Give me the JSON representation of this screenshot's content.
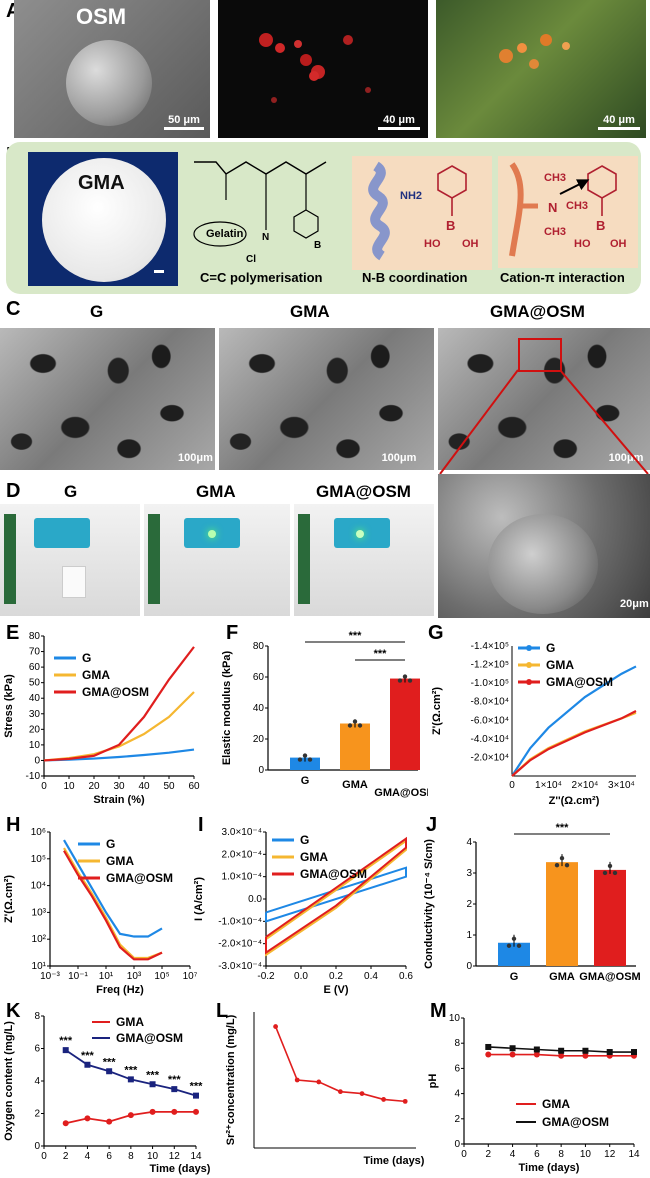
{
  "panels": {
    "A": "A",
    "B": "B",
    "C": "C",
    "D": "D",
    "E": "E",
    "F": "F",
    "G": "G",
    "H": "H",
    "I": "I",
    "J": "J",
    "K": "K",
    "L": "L",
    "M": "M"
  },
  "panelA": {
    "title": "OSM",
    "scale1": "50 μm",
    "scale2": "40 μm",
    "scale3": "40 μm"
  },
  "panelB": {
    "gma": "GMA",
    "gelatin": "Gelatin",
    "cap1": "C=C polymerisation",
    "cap2": "N-B coordination",
    "cap3": "Cation-π interaction",
    "nh2": "NH2",
    "ho": "HO",
    "oh": "OH",
    "b": "B",
    "n": "N",
    "ch3": "CH3",
    "cl": "Cl"
  },
  "panelC": {
    "t1": "G",
    "t2": "GMA",
    "t3": "GMA@OSM",
    "s1": "100μm",
    "s2": "100μm",
    "s3": "100μm",
    "s4": "20μm"
  },
  "panelD": {
    "t1": "G",
    "t2": "GMA",
    "t3": "GMA@OSM"
  },
  "colors": {
    "G": "#1e88e5",
    "GMA": "#f5b731",
    "GMA@OSM": "#e01e1e",
    "GMA_bar": "#f7941d",
    "OSM_line": "#1a237e"
  },
  "chart_data": [
    {
      "panel": "E",
      "type": "line",
      "ylabel": "Stress (kPa)",
      "xlabel": "Strain (%)",
      "xticks": [
        "0",
        "10",
        "20",
        "30",
        "40",
        "50",
        "60"
      ],
      "yticks": [
        "-10",
        "0",
        "10",
        "20",
        "30",
        "40",
        "50",
        "60",
        "70",
        "80"
      ],
      "ylim": [
        -10,
        80
      ],
      "xlim": [
        0,
        60
      ],
      "series": [
        {
          "name": "G",
          "x": [
            0,
            10,
            20,
            30,
            40,
            50,
            60
          ],
          "y": [
            0,
            0.5,
            1.2,
            2.2,
            3.5,
            5,
            7
          ]
        },
        {
          "name": "GMA",
          "x": [
            0,
            10,
            20,
            30,
            40,
            50,
            60
          ],
          "y": [
            0,
            1.5,
            4,
            9,
            17,
            28,
            44
          ]
        },
        {
          "name": "GMA@OSM",
          "x": [
            0,
            10,
            20,
            30,
            40,
            50,
            60
          ],
          "y": [
            0,
            1,
            3,
            10,
            28,
            52,
            73
          ]
        }
      ]
    },
    {
      "panel": "F",
      "type": "bar",
      "ylabel": "Elastic modulus (kPa)",
      "categories": [
        "G",
        "GMA",
        "GMA@OSM"
      ],
      "values": [
        8,
        30,
        59
      ],
      "ylim": [
        0,
        80
      ],
      "yticks": [
        "0",
        "20",
        "40",
        "60",
        "80"
      ],
      "sig": [
        "***",
        "***"
      ]
    },
    {
      "panel": "G",
      "type": "line",
      "ylabel": "Z'(Ω.cm²)",
      "xlabel": "Z''(Ω.cm²)",
      "yticks": [
        "-2.0×10⁴",
        "-4.0×10⁴",
        "-6.0×10⁴",
        "-8.0×10⁴",
        "-1.0×10⁵",
        "-1.2×10⁵",
        "-1.4×10⁵"
      ],
      "xticks": [
        "0",
        "1×10⁴",
        "2×10⁴",
        "3×10⁴"
      ],
      "series": [
        {
          "name": "G",
          "x": [
            0,
            5000,
            10000,
            20000,
            30000,
            34000
          ],
          "y": [
            0,
            30000,
            52000,
            85000,
            110000,
            118000
          ]
        },
        {
          "name": "GMA",
          "x": [
            0,
            5000,
            10000,
            20000,
            30000,
            34000
          ],
          "y": [
            0,
            18000,
            30000,
            48000,
            62000,
            68000
          ]
        },
        {
          "name": "GMA@OSM",
          "x": [
            0,
            5000,
            10000,
            20000,
            30000,
            34000
          ],
          "y": [
            0,
            17000,
            29000,
            47000,
            62000,
            70000
          ]
        }
      ]
    },
    {
      "panel": "H",
      "type": "line",
      "ylabel": "Z'(Ω.cm²)",
      "xlabel": "Freq (Hz)",
      "xticks": [
        "10⁻³",
        "10⁻¹",
        "10¹",
        "10³",
        "10⁵",
        "10⁷"
      ],
      "yticks": [
        "10¹",
        "10²",
        "10³",
        "10⁴",
        "10⁵",
        "10⁶"
      ],
      "series": [
        {
          "name": "G",
          "x": [
            -2,
            -1,
            0,
            1,
            2,
            3,
            4,
            5
          ],
          "y": [
            5.7,
            4.8,
            3.9,
            3.0,
            2.2,
            2.1,
            2.1,
            2.4
          ]
        },
        {
          "name": "GMA",
          "x": [
            -2,
            -1,
            0,
            1,
            2,
            3,
            4,
            5
          ],
          "y": [
            5.4,
            4.5,
            3.7,
            2.8,
            1.8,
            1.3,
            1.3,
            1.5
          ]
        },
        {
          "name": "GMA@OSM",
          "x": [
            -2,
            -1,
            0,
            1,
            2,
            3,
            4,
            5
          ],
          "y": [
            5.3,
            4.4,
            3.6,
            2.7,
            1.7,
            1.25,
            1.25,
            1.5
          ]
        }
      ]
    },
    {
      "panel": "I",
      "type": "line",
      "ylabel": "I (A/cm²)",
      "xlabel": "E (V)",
      "xticks": [
        "-0.2",
        "0.0",
        "0.2",
        "0.4",
        "0.6"
      ],
      "yticks": [
        "-3.0×10⁻⁴",
        "-2.0×10⁻⁴",
        "-1.0×10⁻⁴",
        "0.0",
        "1.0×10⁻⁴",
        "2.0×10⁻⁴",
        "3.0×10⁻⁴"
      ],
      "series": [
        {
          "name": "G"
        },
        {
          "name": "GMA"
        },
        {
          "name": "GMA@OSM"
        }
      ]
    },
    {
      "panel": "J",
      "type": "bar",
      "ylabel": "Conductivity (10⁻⁴ S/cm)",
      "categories": [
        "G",
        "GMA",
        "GMA@OSM"
      ],
      "values": [
        0.75,
        3.35,
        3.1
      ],
      "ylim": [
        0,
        4
      ],
      "yticks": [
        "0",
        "1",
        "2",
        "3",
        "4"
      ],
      "sig": [
        "***"
      ]
    },
    {
      "panel": "K",
      "type": "line",
      "ylabel": "Oxygen content (mg/L)",
      "xlabel": "Time (days)",
      "xticks": [
        "0",
        "2",
        "4",
        "6",
        "8",
        "10",
        "12",
        "14"
      ],
      "yticks": [
        "0",
        "2",
        "4",
        "6",
        "8"
      ],
      "series": [
        {
          "name": "GMA",
          "x": [
            2,
            4,
            6,
            8,
            10,
            12,
            14
          ],
          "y": [
            1.4,
            1.7,
            1.5,
            1.9,
            2.1,
            2.1,
            2.1
          ]
        },
        {
          "name": "GMA@OSM",
          "x": [
            2,
            4,
            6,
            8,
            10,
            12,
            14
          ],
          "y": [
            5.9,
            5.0,
            4.6,
            4.1,
            3.8,
            3.5,
            3.1
          ]
        }
      ],
      "sig": "***"
    },
    {
      "panel": "L",
      "type": "line",
      "ylabel": "Sr²⁺concentration (mg/L)",
      "xlabel": "Time (days)",
      "series": [
        {
          "name": "",
          "x": [
            2,
            4,
            6,
            8,
            10,
            12,
            14
          ],
          "y": [
            12.5,
            7.0,
            6.8,
            5.8,
            5.6,
            5.0,
            4.8
          ]
        }
      ]
    },
    {
      "panel": "M",
      "type": "line",
      "ylabel": "pH",
      "xlabel": "Time (days)",
      "xticks": [
        "0",
        "2",
        "4",
        "6",
        "8",
        "10",
        "12",
        "14"
      ],
      "yticks": [
        "0",
        "2",
        "4",
        "6",
        "8",
        "10"
      ],
      "series": [
        {
          "name": "GMA",
          "x": [
            2,
            4,
            6,
            8,
            10,
            12,
            14
          ],
          "y": [
            7.1,
            7.1,
            7.1,
            7.0,
            7.0,
            7.0,
            7.0
          ]
        },
        {
          "name": "GMA@OSM",
          "x": [
            2,
            4,
            6,
            8,
            10,
            12,
            14
          ],
          "y": [
            7.7,
            7.6,
            7.5,
            7.4,
            7.4,
            7.3,
            7.3
          ]
        }
      ]
    }
  ]
}
